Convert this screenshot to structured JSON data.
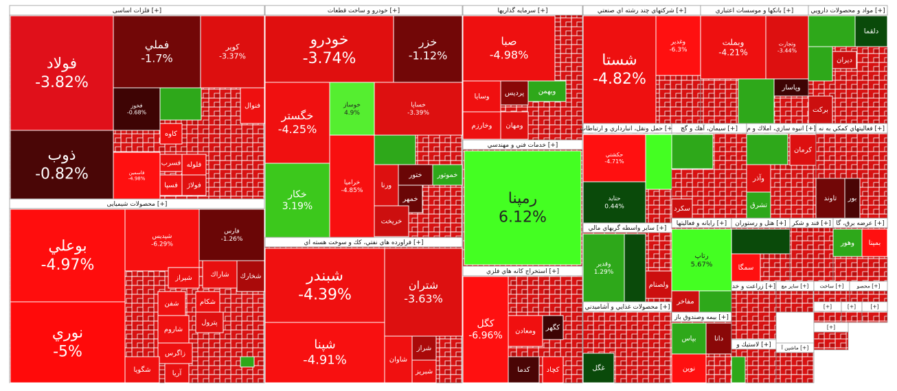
{
  "sectors": [
    {
      "title": "فلزات اساسی [+]",
      "tiles": [
        {
          "name": "فولاد",
          "change": "-3.82%"
        },
        {
          "name": "ذوب",
          "change": "-0.82%"
        },
        {
          "name": "فملي",
          "change": "-1.7%"
        },
        {
          "name": "کوير",
          "change": "-3.37%"
        },
        {
          "name": "فخوز",
          "change": "-0.68%"
        },
        {
          "name": "فاسمين",
          "change": "-4.98%"
        },
        {
          "name": "فنوال"
        },
        {
          "name": "کاوه"
        },
        {
          "name": "فسرب"
        },
        {
          "name": "فسپا"
        },
        {
          "name": "فولاژ"
        },
        {
          "name": "فلوله"
        }
      ]
    },
    {
      "title": "محصولات شیمیایی [+]",
      "tiles": [
        {
          "name": "بوعلي",
          "change": "-4.97%"
        },
        {
          "name": "نوري",
          "change": "-5%"
        },
        {
          "name": "شپديس",
          "change": "-6.29%"
        },
        {
          "name": "فارس",
          "change": "-1.26%"
        },
        {
          "name": "شيراز"
        },
        {
          "name": "شاراك"
        },
        {
          "name": "شخارك"
        },
        {
          "name": "شفن"
        },
        {
          "name": "شكام"
        },
        {
          "name": "شاروم"
        },
        {
          "name": "پترول"
        },
        {
          "name": "زاگرس"
        },
        {
          "name": "شگويا"
        },
        {
          "name": "آريا"
        }
      ]
    },
    {
      "title": "خودرو و ساخت قطعات [+]",
      "tiles": [
        {
          "name": "خودرو",
          "change": "-3.74%"
        },
        {
          "name": "خزر",
          "change": "-1.12%"
        },
        {
          "name": "خگستر",
          "change": "-4.25%"
        },
        {
          "name": "خوساز",
          "change": "4.9%"
        },
        {
          "name": "خساپا",
          "change": "-3.39%"
        },
        {
          "name": "خكار",
          "change": "3.19%"
        },
        {
          "name": "خراميا",
          "change": "-4.85%"
        },
        {
          "name": "ورنا"
        },
        {
          "name": "خمهر"
        },
        {
          "name": "خريخت"
        },
        {
          "name": "ختور"
        },
        {
          "name": "خموتور"
        }
      ]
    },
    {
      "title": "فراورده هاي نفتي، كك و سوخت هسته اي [+]",
      "tiles": [
        {
          "name": "شبندر",
          "change": "-4.39%"
        },
        {
          "name": "شتران",
          "change": "-3.63%"
        },
        {
          "name": "شپنا",
          "change": "-4.91%"
        },
        {
          "name": "شاوان"
        },
        {
          "name": "شراز"
        },
        {
          "name": "شبريز"
        }
      ]
    },
    {
      "title": "سرمايه گذاريها [+]",
      "tiles": [
        {
          "name": "صبا",
          "change": "-4.98%"
        },
        {
          "name": "وسايا"
        },
        {
          "name": "پرديس"
        },
        {
          "name": "وبهمن"
        },
        {
          "name": "وخارزم"
        },
        {
          "name": "ومهان"
        }
      ]
    },
    {
      "title": "خدمات فني و مهندسي [+]",
      "tiles": [
        {
          "name": "رمپنا",
          "change": "6.12%"
        }
      ]
    },
    {
      "title": "استخراج كانه هاي فلزي [+]",
      "tiles": [
        {
          "name": "کگل",
          "change": "-6.96%"
        },
        {
          "name": "ومعادن"
        },
        {
          "name": "کگهر"
        },
        {
          "name": "کدما"
        },
        {
          "name": "کچاد"
        }
      ]
    },
    {
      "title": "شركتهاي چند رشته اي صنعتي [+]",
      "tiles": [
        {
          "name": "شستا",
          "change": "-4.82%"
        },
        {
          "name": "وغدير",
          "change": "-6.3%"
        }
      ]
    },
    {
      "title": "بانكها و موسسات اعتباري [+]",
      "tiles": [
        {
          "name": "وبملت",
          "change": "-4.21%"
        },
        {
          "name": "وتجارت",
          "change": "-3.44%"
        },
        {
          "name": "وپاسار"
        }
      ]
    },
    {
      "title": "مواد و محصولات دارويي [+]",
      "tiles": [
        {
          "name": "دلقما"
        },
        {
          "name": "ديران"
        },
        {
          "name": "برکت"
        }
      ]
    },
    {
      "title": "حمل ونقل، انبارداري و ارتباطات [+]",
      "tiles": [
        {
          "name": "حكشتي",
          "change": "-4.71%"
        },
        {
          "name": "حتايد",
          "change": "0.44%"
        }
      ]
    },
    {
      "title": "سيمان، آهك و گچ [+]",
      "tiles": [
        {
          "name": "سكرد"
        }
      ]
    },
    {
      "title": "انبوه سازي، املاك و م [+]",
      "tiles": [
        {
          "name": "کرمان"
        },
        {
          "name": "وآذر"
        },
        {
          "name": "تشرق"
        }
      ]
    },
    {
      "title": "فعاليتهاي كمكي به نه [+]",
      "tiles": [
        {
          "name": "تاوند"
        },
        {
          "name": "بور"
        }
      ]
    },
    {
      "title": "ساير واسطه گريهاي مالي [+]",
      "tiles": [
        {
          "name": "وقدير",
          "change": "1.29%"
        },
        {
          "name": "ولصنام"
        }
      ]
    },
    {
      "title": "رايانه و فعاليتها [+]",
      "tiles": [
        {
          "name": "رتاپ",
          "change": "5.67%"
        },
        {
          "name": "مفاخر"
        }
      ]
    },
    {
      "title": "هتل و رستوران [+]",
      "tiles": [
        {
          "name": "سمگا"
        }
      ]
    },
    {
      "title": "قند و شكر [+]",
      "tiles": []
    },
    {
      "title": "عرضه برق، گا [+]",
      "tiles": [
        {
          "name": "وهور"
        },
        {
          "name": "بمپنا"
        }
      ]
    },
    {
      "title": "محصولات غذايي و آشاميدني [+]",
      "tiles": [
        {
          "name": "غگل"
        }
      ]
    },
    {
      "title": "بيمه وصندوق باز [+]",
      "tiles": [
        {
          "name": "بپاس"
        },
        {
          "name": "دانا"
        },
        {
          "name": "نوين"
        }
      ]
    },
    {
      "title": "زراعت و خد [+]",
      "tiles": []
    },
    {
      "title": "ساير مع [+]",
      "tiles": []
    },
    {
      "title": "ساخت [+]",
      "tiles": []
    },
    {
      "title": "محصو [+]",
      "tiles": []
    },
    {
      "title": "لاستيك و [+]",
      "tiles": []
    },
    {
      "title": "ماشين آ [+]",
      "tiles": []
    },
    {
      "title": "[+]",
      "tiles": []
    },
    {
      "title": "[+]",
      "tiles": []
    },
    {
      "title": "[+]",
      "tiles": []
    },
    {
      "title": "[+]",
      "tiles": []
    }
  ]
}
